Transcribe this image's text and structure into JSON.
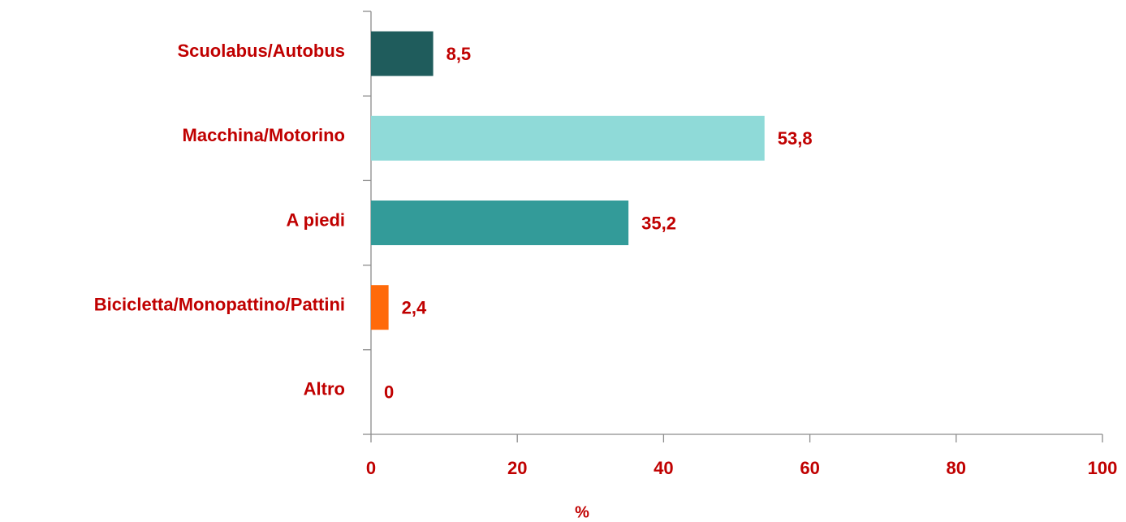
{
  "chart_data": {
    "type": "bar",
    "orientation": "horizontal",
    "categories": [
      "Scuolabus/Autobus",
      "Macchina/Motorino",
      "A piedi",
      "Bicicletta/Monopattino/Pattini",
      "Altro"
    ],
    "values": [
      8.5,
      53.8,
      35.2,
      2.4,
      0
    ],
    "value_labels": [
      "8,5",
      "53,8",
      "35,2",
      "2,4",
      "0"
    ],
    "colors": [
      "#1f5c5c",
      "#8fdad8",
      "#339b99",
      "#ff6a0a",
      "#999999"
    ],
    "xlabel": "%",
    "xlim": [
      0,
      100
    ],
    "xticks": [
      0,
      20,
      40,
      60,
      80,
      100
    ],
    "grid": false
  }
}
